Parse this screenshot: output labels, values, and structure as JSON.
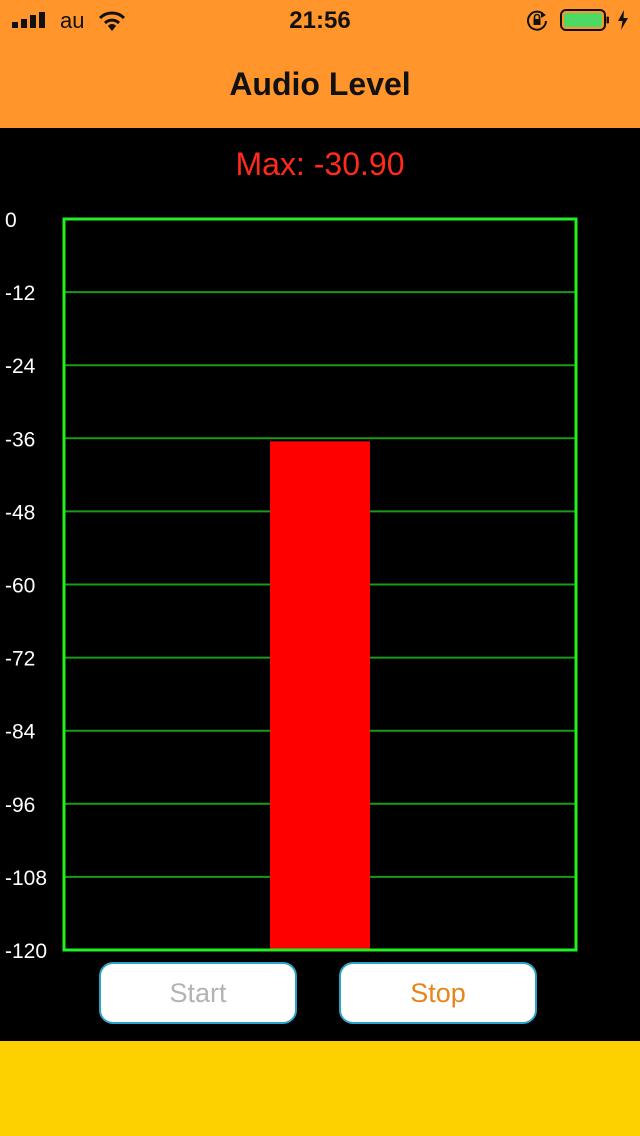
{
  "status_bar": {
    "carrier": "au",
    "time": "21:56",
    "icons": [
      "signal-bars-icon",
      "wifi-icon",
      "rotation-lock-icon",
      "battery-icon",
      "charging-bolt-icon"
    ],
    "battery_color": "#4cd964"
  },
  "nav": {
    "title": "Audio Level",
    "background": "#ff952b"
  },
  "max_display": {
    "prefix": "Max: ",
    "value": "-30.90",
    "color": "#ff2a1a"
  },
  "meter": {
    "ticks": [
      "0",
      "-12",
      "-24",
      "-36",
      "-48",
      "-60",
      "-72",
      "-84",
      "-96",
      "-108",
      "-120"
    ],
    "frame_color": "#22ee22",
    "grid_color": "#1a9a1a",
    "bar_color": "#ff0000"
  },
  "chart_data": {
    "type": "bar",
    "categories": [
      ""
    ],
    "values": [
      -36.5
    ],
    "ylim": [
      -120,
      0
    ],
    "yticks": [
      0,
      -12,
      -24,
      -36,
      -48,
      -60,
      -72,
      -84,
      -96,
      -108,
      -120
    ],
    "grid": true,
    "title": "",
    "xlabel": "",
    "ylabel": ""
  },
  "controls": {
    "start_label": "Start",
    "stop_label": "Stop"
  },
  "footer": {
    "background": "#fdd000"
  }
}
